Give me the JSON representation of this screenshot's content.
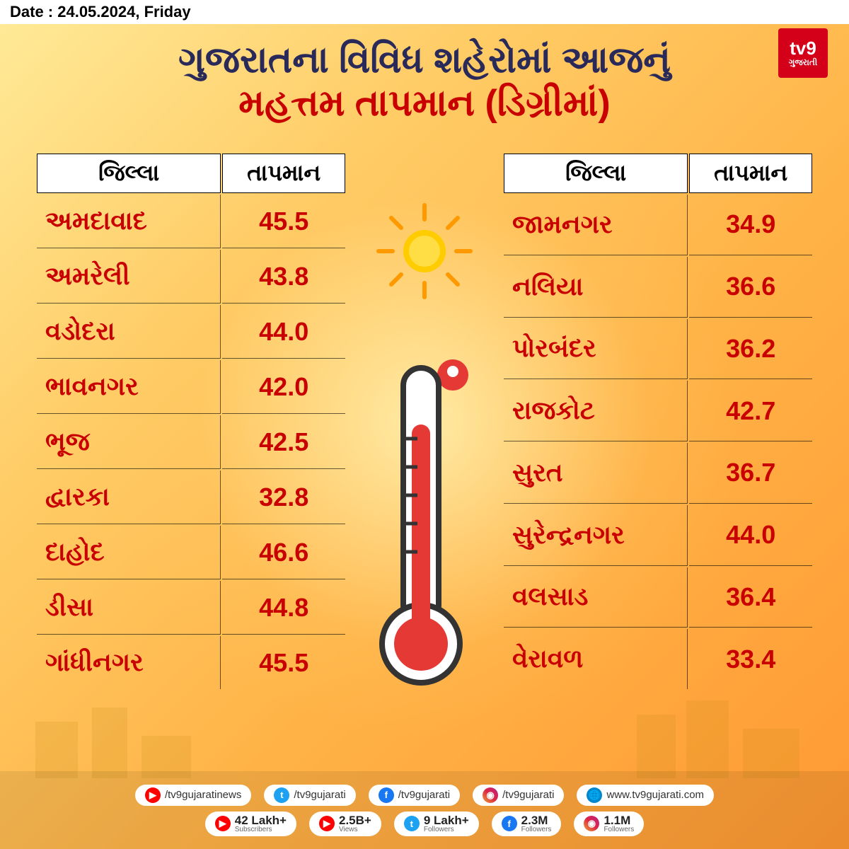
{
  "date_text": "Date : 24.05.2024, Friday",
  "title_line1": "ગુજરાતના વિવિધ શહેરોમાં આજનું",
  "title_line2": "મહત્તમ તાપમાન (ડિગ્રીમાં)",
  "logo_main": "tv9",
  "logo_sub": "ગુજરાતી",
  "column_district": "જિલ્લા",
  "column_temp": "તાપમાન",
  "left_table": [
    {
      "district": "અમદાવાદ",
      "temp": "45.5"
    },
    {
      "district": "અમરેલી",
      "temp": "43.8"
    },
    {
      "district": "વડોદરા",
      "temp": "44.0"
    },
    {
      "district": "ભાવનગર",
      "temp": "42.0"
    },
    {
      "district": "ભૂજ",
      "temp": "42.5"
    },
    {
      "district": "દ્વારકા",
      "temp": "32.8"
    },
    {
      "district": "દાહોદ",
      "temp": "46.6"
    },
    {
      "district": "ડીસા",
      "temp": "44.8"
    },
    {
      "district": "ગાંધીનગર",
      "temp": "45.5"
    }
  ],
  "right_table": [
    {
      "district": "જામનગર",
      "temp": "34.9"
    },
    {
      "district": "નલિયા",
      "temp": "36.6"
    },
    {
      "district": "પોરબંદર",
      "temp": "36.2"
    },
    {
      "district": "રાજકોટ",
      "temp": "42.7"
    },
    {
      "district": "સુરત",
      "temp": "36.7"
    },
    {
      "district": "સુરેન્દ્રનગર",
      "temp": "44.0"
    },
    {
      "district": "વલસાડ",
      "temp": "36.4"
    },
    {
      "district": "વેરાવળ",
      "temp": "33.4"
    }
  ],
  "social_handles": [
    {
      "icon": "yt",
      "text": "/tv9gujaratinews"
    },
    {
      "icon": "tw",
      "text": "/tv9gujarati"
    },
    {
      "icon": "fb",
      "text": "/tv9gujarati"
    },
    {
      "icon": "ig",
      "text": "/tv9gujarati"
    },
    {
      "icon": "web",
      "text": "www.tv9gujarati.com"
    }
  ],
  "social_stats": [
    {
      "icon": "yt",
      "number": "42 Lakh+",
      "label": "Subscribers"
    },
    {
      "icon": "yt",
      "number": "2.5B+",
      "label": "Views"
    },
    {
      "icon": "tw",
      "number": "9 Lakh+",
      "label": "Followers"
    },
    {
      "icon": "fb",
      "number": "2.3M",
      "label": "Followers"
    },
    {
      "icon": "ig",
      "number": "1.1M",
      "label": "Followers"
    }
  ],
  "colors": {
    "accent_red": "#c80000",
    "title_blue": "#2a2a5a",
    "logo_red": "#d4001a",
    "sun_inner": "#ffcc00",
    "sun_outer": "#ff9900",
    "thermo_red": "#e53935"
  }
}
